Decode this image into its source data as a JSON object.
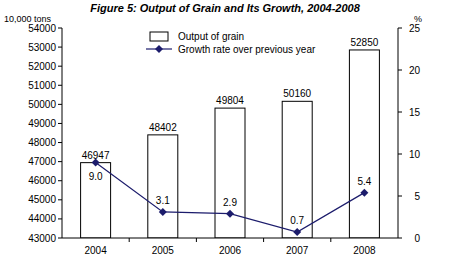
{
  "chart_data": {
    "type": "bar",
    "title": "Figure 5: Output of Grain and Its Growth, 2004-2008",
    "y_label": "10,000 tons",
    "y2_label": "%",
    "categories": [
      "2004",
      "2005",
      "2006",
      "2007",
      "2008"
    ],
    "series": [
      {
        "name": "Output of grain",
        "type": "bar",
        "color": "#ffffff",
        "values": [
          46947,
          48402,
          49804,
          50160,
          52850
        ]
      },
      {
        "name": "Growth rate over previous year",
        "type": "line",
        "color": "#1c1c6c",
        "marker": "diamond",
        "axis": "y2",
        "values": [
          9.0,
          3.1,
          2.9,
          0.7,
          5.4
        ],
        "value_labels": [
          "9.0",
          "3.1",
          "2.9",
          "0.7",
          "5.4"
        ]
      }
    ],
    "ylim": [
      43000,
      54000
    ],
    "yticks": [
      43000,
      44000,
      45000,
      46000,
      47000,
      48000,
      49000,
      50000,
      51000,
      52000,
      53000,
      54000
    ],
    "y2lim": [
      0,
      25
    ],
    "y2ticks": [
      0,
      5,
      10,
      15,
      20,
      25
    ],
    "data_labels": true,
    "grid": false,
    "legend": "top"
  }
}
